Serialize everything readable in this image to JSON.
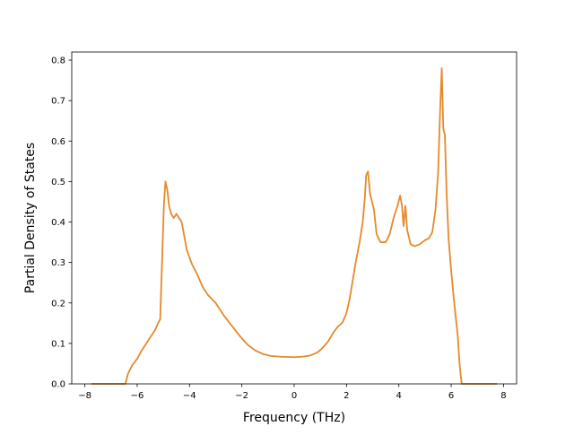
{
  "chart_data": {
    "type": "line",
    "title": "",
    "xlabel": "Frequency (THz)",
    "ylabel": "Partial Density of States",
    "xlim": [
      -8.5,
      8.5
    ],
    "ylim": [
      0.0,
      0.82
    ],
    "xticks": [
      -8,
      -6,
      -4,
      -2,
      0,
      2,
      4,
      6,
      8
    ],
    "xtick_labels": [
      "−8",
      "−6",
      "−4",
      "−2",
      "0",
      "2",
      "4",
      "6",
      "8"
    ],
    "yticks": [
      0.0,
      0.1,
      0.2,
      0.3,
      0.4,
      0.5,
      0.6,
      0.7,
      0.8
    ],
    "ytick_labels": [
      "0.0",
      "0.1",
      "0.2",
      "0.3",
      "0.4",
      "0.5",
      "0.6",
      "0.7",
      "0.8"
    ],
    "grid": false,
    "legend": null,
    "line_color": "#e6892a",
    "series": [
      {
        "color": "#e6892a",
        "points": [
          [
            -7.75,
            0.0
          ],
          [
            -6.6,
            0.0
          ],
          [
            -6.45,
            0.0
          ],
          [
            -6.35,
            0.025
          ],
          [
            -6.2,
            0.045
          ],
          [
            -6.0,
            0.062
          ],
          [
            -5.85,
            0.08
          ],
          [
            -5.7,
            0.095
          ],
          [
            -5.5,
            0.115
          ],
          [
            -5.3,
            0.135
          ],
          [
            -5.2,
            0.15
          ],
          [
            -5.12,
            0.16
          ],
          [
            -5.05,
            0.3
          ],
          [
            -4.98,
            0.44
          ],
          [
            -4.92,
            0.5
          ],
          [
            -4.85,
            0.48
          ],
          [
            -4.78,
            0.44
          ],
          [
            -4.7,
            0.42
          ],
          [
            -4.6,
            0.41
          ],
          [
            -4.5,
            0.42
          ],
          [
            -4.4,
            0.41
          ],
          [
            -4.3,
            0.4
          ],
          [
            -4.2,
            0.365
          ],
          [
            -4.1,
            0.33
          ],
          [
            -3.9,
            0.295
          ],
          [
            -3.7,
            0.27
          ],
          [
            -3.5,
            0.24
          ],
          [
            -3.3,
            0.22
          ],
          [
            -3.0,
            0.2
          ],
          [
            -2.7,
            0.17
          ],
          [
            -2.4,
            0.145
          ],
          [
            -2.1,
            0.12
          ],
          [
            -1.8,
            0.098
          ],
          [
            -1.5,
            0.083
          ],
          [
            -1.2,
            0.074
          ],
          [
            -0.9,
            0.069
          ],
          [
            -0.5,
            0.067
          ],
          [
            0.0,
            0.066
          ],
          [
            0.3,
            0.067
          ],
          [
            0.6,
            0.07
          ],
          [
            0.9,
            0.078
          ],
          [
            1.1,
            0.09
          ],
          [
            1.3,
            0.105
          ],
          [
            1.5,
            0.127
          ],
          [
            1.65,
            0.14
          ],
          [
            1.85,
            0.152
          ],
          [
            2.0,
            0.175
          ],
          [
            2.12,
            0.21
          ],
          [
            2.25,
            0.26
          ],
          [
            2.35,
            0.3
          ],
          [
            2.5,
            0.35
          ],
          [
            2.62,
            0.4
          ],
          [
            2.7,
            0.46
          ],
          [
            2.75,
            0.515
          ],
          [
            2.82,
            0.525
          ],
          [
            2.9,
            0.47
          ],
          [
            3.05,
            0.43
          ],
          [
            3.15,
            0.37
          ],
          [
            3.3,
            0.35
          ],
          [
            3.5,
            0.35
          ],
          [
            3.65,
            0.37
          ],
          [
            3.8,
            0.41
          ],
          [
            3.95,
            0.44
          ],
          [
            4.05,
            0.465
          ],
          [
            4.12,
            0.44
          ],
          [
            4.18,
            0.39
          ],
          [
            4.25,
            0.44
          ],
          [
            4.32,
            0.38
          ],
          [
            4.45,
            0.345
          ],
          [
            4.6,
            0.34
          ],
          [
            4.8,
            0.345
          ],
          [
            5.0,
            0.355
          ],
          [
            5.15,
            0.36
          ],
          [
            5.28,
            0.375
          ],
          [
            5.4,
            0.43
          ],
          [
            5.5,
            0.52
          ],
          [
            5.58,
            0.68
          ],
          [
            5.64,
            0.78
          ],
          [
            5.7,
            0.63
          ],
          [
            5.76,
            0.615
          ],
          [
            5.82,
            0.48
          ],
          [
            5.9,
            0.36
          ],
          [
            6.0,
            0.28
          ],
          [
            6.1,
            0.21
          ],
          [
            6.25,
            0.12
          ],
          [
            6.32,
            0.05
          ],
          [
            6.4,
            0.0
          ],
          [
            6.6,
            0.0
          ],
          [
            7.75,
            0.0
          ]
        ]
      }
    ]
  }
}
